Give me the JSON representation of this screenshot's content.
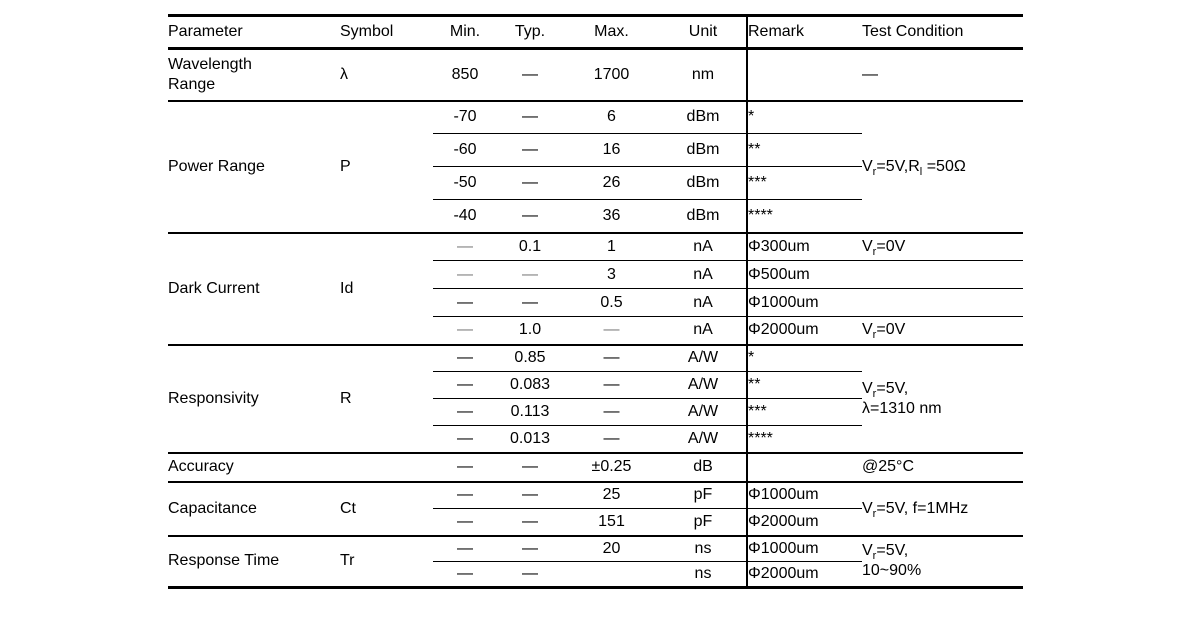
{
  "table": {
    "columns": [
      {
        "key": "parameter",
        "label": "Parameter"
      },
      {
        "key": "symbol",
        "label": "Symbol"
      },
      {
        "key": "min",
        "label": "Min."
      },
      {
        "key": "typ",
        "label": "Typ."
      },
      {
        "key": "max",
        "label": "Max."
      },
      {
        "key": "unit",
        "label": "Unit"
      },
      {
        "key": "remark",
        "label": "Remark"
      },
      {
        "key": "test",
        "label": "Test Condition"
      }
    ],
    "groups": [
      {
        "parameter": "Wavelength\nRange",
        "symbol": "λ",
        "test_condition": "—",
        "rows": [
          {
            "min": "850",
            "typ": "—",
            "max": "1700",
            "unit": "nm",
            "remark": ""
          }
        ]
      },
      {
        "parameter": "Power Range",
        "symbol": "P",
        "test_condition": "V_{r}=5V,R_{l} =50Ω",
        "rows": [
          {
            "min": "-70",
            "typ": "—",
            "max": "6",
            "unit": "dBm",
            "remark": "*"
          },
          {
            "min": "-60",
            "typ": "—",
            "max": "16",
            "unit": "dBm",
            "remark": "**"
          },
          {
            "min": "-50",
            "typ": "—",
            "max": "26",
            "unit": "dBm",
            "remark": "***"
          },
          {
            "min": "-40",
            "typ": "—",
            "max": "36",
            "unit": "dBm",
            "remark": "****"
          }
        ]
      },
      {
        "parameter": "Dark Current",
        "symbol": "Id",
        "per_row_test": true,
        "rows": [
          {
            "min": {
              "text": "—",
              "muted": true
            },
            "typ": "0.1",
            "max": "1",
            "unit": "nA",
            "remark": "Φ300um",
            "test": "V_{r}=0V"
          },
          {
            "min": {
              "text": "—",
              "muted": true
            },
            "typ": {
              "text": "—",
              "muted": true
            },
            "max": "3",
            "unit": "nA",
            "remark": "Φ500um",
            "test": ""
          },
          {
            "min": "—",
            "typ": "—",
            "max": "0.5",
            "unit": "nA",
            "remark": "Φ1000um",
            "test": ""
          },
          {
            "min": {
              "text": "—",
              "muted": true
            },
            "typ": "1.0",
            "max": {
              "text": "—",
              "muted": true
            },
            "unit": "nA",
            "remark": "Φ2000um",
            "test": "V_{r}=0V"
          }
        ]
      },
      {
        "parameter": "Responsivity",
        "symbol": "R",
        "test_condition": "V_{r}=5V,\nλ=1310 nm",
        "rows": [
          {
            "min": "—",
            "typ": "0.85",
            "max": "—",
            "unit": "A/W",
            "remark": "*"
          },
          {
            "min": "—",
            "typ": "0.083",
            "max": "—",
            "unit": "A/W",
            "remark": "**"
          },
          {
            "min": "—",
            "typ": "0.113",
            "max": "—",
            "unit": "A/W",
            "remark": "***"
          },
          {
            "min": "—",
            "typ": "0.013",
            "max": "—",
            "unit": "A/W",
            "remark": "****"
          }
        ]
      },
      {
        "parameter": "Accuracy",
        "symbol": "",
        "test_condition": "@25°C",
        "rows": [
          {
            "min": "—",
            "typ": "—",
            "max": "±0.25",
            "unit": "dB",
            "remark": ""
          }
        ]
      },
      {
        "parameter": "Capacitance",
        "symbol": "Ct",
        "test_condition": "V_{r}=5V, f=1MHz",
        "rows": [
          {
            "min": "—",
            "typ": "—",
            "max": "25",
            "unit": "pF",
            "remark": "Φ1000um"
          },
          {
            "min": "—",
            "typ": "—",
            "max": "151",
            "unit": "pF",
            "remark": "Φ2000um"
          }
        ]
      },
      {
        "parameter": "Response Time",
        "symbol": "Tr",
        "test_condition": "V_{r}=5V,\n10~90%",
        "rows": [
          {
            "min": "—",
            "typ": "—",
            "max": "20",
            "unit": "ns",
            "remark": "Φ1000um"
          },
          {
            "min": "—",
            "typ": "—",
            "max": "",
            "unit": "ns",
            "remark": "Φ2000um"
          }
        ]
      }
    ]
  }
}
